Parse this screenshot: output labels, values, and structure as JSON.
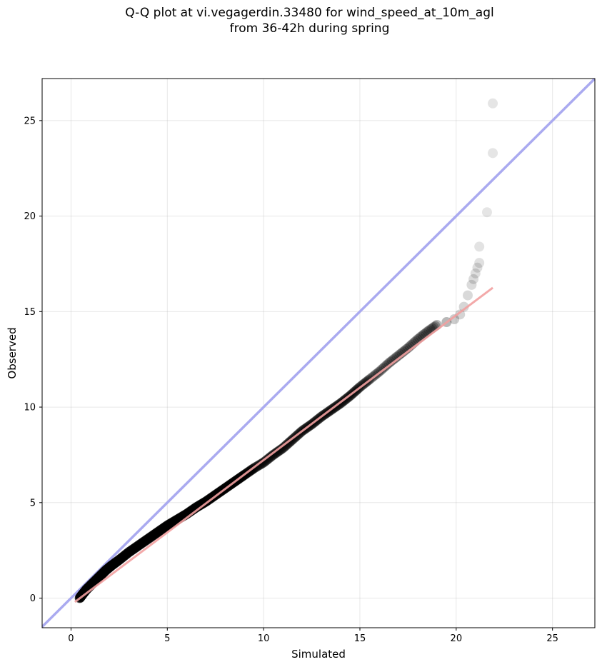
{
  "chart_data": {
    "type": "scatter",
    "title_lines": [
      "Q-Q plot at vi.vegagerdin.33480 for wind_speed_at_10m_agl",
      "from 36-42h during spring"
    ],
    "xlabel": "Simulated",
    "ylabel": "Observed",
    "xlim": [
      -1.5,
      27.2
    ],
    "ylim": [
      -1.55,
      27.2
    ],
    "xticks": [
      0,
      5,
      10,
      15,
      20,
      25
    ],
    "yticks": [
      0,
      5,
      10,
      15,
      20,
      25
    ],
    "grid": true,
    "reference_line": {
      "name": "y = x",
      "color": "#aaaaf0",
      "x": [
        -1.5,
        27.2
      ],
      "y": [
        -1.5,
        27.2
      ]
    },
    "fit_line": {
      "name": "fit",
      "color": "#f2a0a0",
      "x": [
        0.2,
        21.9
      ],
      "y": [
        -0.2,
        16.25
      ]
    },
    "quantiles_bulk": {
      "x": [
        0.45,
        0.6,
        0.8,
        1.0,
        1.2,
        1.5,
        1.8,
        2.1,
        2.5,
        3.0,
        3.5,
        4.0,
        4.5,
        5.0,
        5.5,
        6.0,
        6.5,
        7.0,
        7.5,
        8.0,
        8.5,
        9.0,
        9.5,
        10.0,
        10.5,
        11.0,
        11.5,
        12.0,
        12.5,
        13.0,
        13.5,
        14.0,
        14.5,
        15.0,
        15.5,
        16.0,
        16.5,
        17.0,
        17.5,
        18.0,
        18.5,
        19.0
      ],
      "y": [
        0.0,
        0.2,
        0.45,
        0.65,
        0.85,
        1.15,
        1.45,
        1.7,
        2.0,
        2.4,
        2.75,
        3.1,
        3.45,
        3.8,
        4.1,
        4.4,
        4.75,
        5.05,
        5.4,
        5.75,
        6.1,
        6.45,
        6.8,
        7.1,
        7.5,
        7.85,
        8.3,
        8.75,
        9.1,
        9.5,
        9.85,
        10.2,
        10.6,
        11.05,
        11.45,
        11.85,
        12.3,
        12.7,
        13.1,
        13.55,
        13.95,
        14.3
      ]
    },
    "quantiles_tail": {
      "x": [
        19.5,
        19.9,
        20.2,
        20.4,
        20.6,
        20.8,
        20.9,
        21.0,
        21.1,
        21.2,
        21.2,
        21.6,
        21.9,
        21.9
      ],
      "y": [
        14.45,
        14.6,
        14.85,
        15.25,
        15.85,
        16.4,
        16.7,
        17.0,
        17.3,
        17.55,
        18.4,
        20.2,
        23.3,
        25.9
      ],
      "opacity": [
        0.28,
        0.2,
        0.17,
        0.16,
        0.15,
        0.14,
        0.14,
        0.13,
        0.13,
        0.12,
        0.11,
        0.1,
        0.1,
        0.1
      ]
    }
  }
}
